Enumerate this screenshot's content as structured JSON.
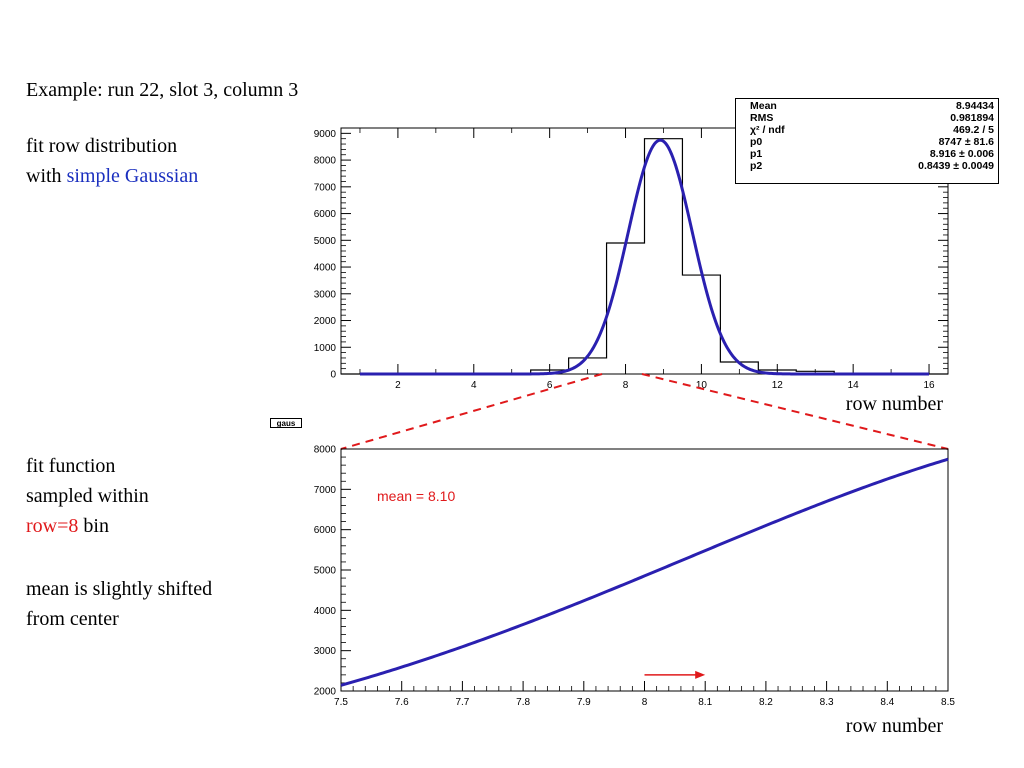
{
  "text": {
    "heading": "Example: run 22, slot 3, column 3",
    "fit_line1": "fit row distribution",
    "fit_line2_prefix": "with ",
    "fit_line2_highlight": "simple Gaussian",
    "sample_line1": "fit function",
    "sample_line2": "sampled within",
    "sample_line3_highlight": "row=8",
    "sample_line3_suffix": " bin",
    "mean_line1": "mean is slightly shifted",
    "mean_line2": "from center",
    "gaus_tag": "gaus"
  },
  "stats_box": {
    "rows": [
      {
        "label": "Mean",
        "value": "8.94434"
      },
      {
        "label": "RMS",
        "value": "0.981894"
      },
      {
        "label": "χ² / ndf",
        "value": "469.2 / 5"
      },
      {
        "label": "p0",
        "value": "8747 ± 81.6"
      },
      {
        "label": "p1",
        "value": "8.916 ± 0.006"
      },
      {
        "label": "p2",
        "value": "0.8439 ± 0.0049"
      }
    ]
  },
  "colors": {
    "fit_curve": "#2a20b0",
    "highlight_blue": "#1a2fbf",
    "highlight_red": "#e0191b",
    "histogram": "#000000"
  },
  "chart_data": [
    {
      "type": "bar",
      "title": "",
      "xlabel": "row number",
      "ylabel": "",
      "xlim": [
        0.5,
        16.5
      ],
      "ylim": [
        0,
        9200
      ],
      "xticks": [
        2,
        4,
        6,
        8,
        10,
        12,
        14,
        16
      ],
      "yticks": [
        0,
        1000,
        2000,
        3000,
        4000,
        5000,
        6000,
        7000,
        8000,
        9000
      ],
      "bin_edges": [
        0.5,
        1.5,
        2.5,
        3.5,
        4.5,
        5.5,
        6.5,
        7.5,
        8.5,
        9.5,
        10.5,
        11.5,
        12.5,
        13.5,
        14.5,
        15.5,
        16.5
      ],
      "values": [
        0,
        0,
        0,
        0,
        0,
        150,
        600,
        4900,
        8800,
        3700,
        450,
        150,
        100,
        0,
        0,
        0
      ],
      "fit": {
        "name": "gaus",
        "p0": 8747,
        "p1": 8.916,
        "p2": 0.8439
      }
    },
    {
      "type": "line",
      "title": "",
      "xlabel": "row number",
      "ylabel": "",
      "xlim": [
        7.5,
        8.5
      ],
      "ylim": [
        2000,
        8000
      ],
      "xticks": [
        7.5,
        7.6,
        7.7,
        7.8,
        7.9,
        8,
        8.1,
        8.2,
        8.3,
        8.4,
        8.5
      ],
      "yticks": [
        2000,
        3000,
        4000,
        5000,
        6000,
        7000,
        8000
      ],
      "series": [
        {
          "values_from": "gaus fit",
          "x_range": [
            7.5,
            8.5
          ]
        }
      ],
      "annotation": "mean = 8.10",
      "arrow": {
        "x_from": 8.0,
        "x_to": 8.1,
        "y": 2400
      }
    }
  ]
}
